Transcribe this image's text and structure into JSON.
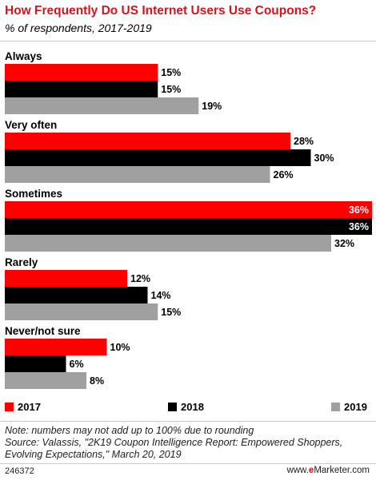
{
  "title": "How Frequently Do US Internet Users Use Coupons?",
  "subtitle": "% of respondents, 2017-2019",
  "colors": {
    "title": "#d7141b",
    "2017": "#ff0000",
    "2018": "#000000",
    "2019": "#a0a0a0"
  },
  "chart_data": {
    "type": "bar",
    "orientation": "horizontal",
    "categories": [
      "Always",
      "Very often",
      "Sometimes",
      "Rarely",
      "Never/not sure"
    ],
    "series": [
      {
        "name": "2017",
        "values": [
          15,
          28,
          36,
          12,
          10
        ]
      },
      {
        "name": "2018",
        "values": [
          15,
          30,
          36,
          14,
          6
        ]
      },
      {
        "name": "2019",
        "values": [
          19,
          26,
          32,
          15,
          8
        ]
      }
    ],
    "value_suffix": "%",
    "legend": "bottom"
  },
  "notes": [
    "Note: numbers may not add up to 100% due to rounding",
    "Source: Valassis, \"2K19 Coupon Intelligence Report: Empowered Shoppers,",
    "Evolving Expectations,\" March 20, 2019"
  ],
  "footer": {
    "id": "246372",
    "brand_prefix": "www.",
    "brand_e": "e",
    "brand_rest": "Marketer.com"
  }
}
